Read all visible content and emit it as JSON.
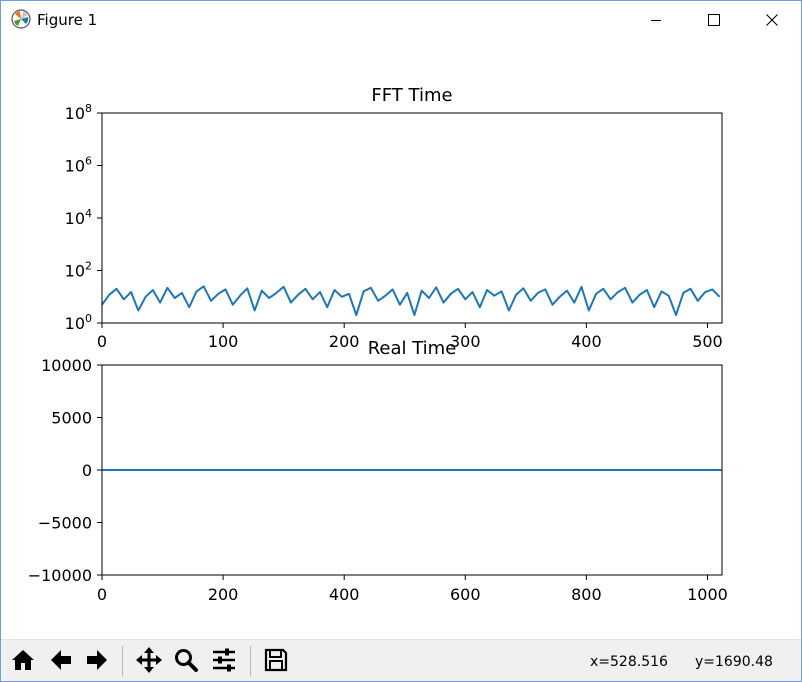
{
  "window": {
    "title": "Figure 1"
  },
  "titlebar_buttons": {
    "minimize": "minimize-icon",
    "maximize": "maximize-icon",
    "close": "close-icon"
  },
  "toolbar": {
    "buttons": [
      "home-icon",
      "back-arrow-icon",
      "forward-arrow-icon",
      "pan-icon",
      "zoom-icon",
      "configure-subplots-icon",
      "save-icon"
    ],
    "status_x": "x=528.516",
    "status_y": "y=1690.48"
  },
  "chart_data": [
    {
      "type": "line",
      "title": "FFT Time",
      "xlabel": "",
      "ylabel": "",
      "xlim": [
        0,
        512
      ],
      "ylim": [
        1,
        100000000
      ],
      "yscale": "log",
      "xticks": [
        "0",
        "100",
        "200",
        "300",
        "400",
        "500"
      ],
      "yticks": [
        {
          "base": "10",
          "exp": "0"
        },
        {
          "base": "10",
          "exp": "2"
        },
        {
          "base": "10",
          "exp": "4"
        },
        {
          "base": "10",
          "exp": "6"
        },
        {
          "base": "10",
          "exp": "8"
        }
      ],
      "series": [
        {
          "color": "#1f77b4",
          "x": [
            0,
            6,
            12,
            18,
            24,
            30,
            36,
            42,
            48,
            54,
            60,
            66,
            72,
            78,
            84,
            90,
            96,
            102,
            108,
            114,
            120,
            126,
            132,
            138,
            144,
            150,
            156,
            162,
            168,
            174,
            180,
            186,
            192,
            198,
            204,
            210,
            216,
            222,
            228,
            234,
            240,
            246,
            252,
            258,
            264,
            270,
            276,
            282,
            288,
            294,
            300,
            306,
            312,
            318,
            324,
            330,
            336,
            342,
            348,
            354,
            360,
            366,
            372,
            378,
            384,
            390,
            396,
            402,
            408,
            414,
            420,
            426,
            432,
            438,
            444,
            450,
            456,
            462,
            468,
            474,
            480,
            486,
            492,
            498,
            504,
            510
          ],
          "y": [
            5,
            12,
            20,
            8,
            15,
            3,
            10,
            18,
            6,
            22,
            9,
            14,
            4,
            16,
            25,
            7,
            13,
            19,
            5,
            11,
            21,
            3,
            17,
            9,
            14,
            24,
            6,
            12,
            20,
            8,
            15,
            4,
            18,
            10,
            13,
            2,
            16,
            22,
            7,
            11,
            19,
            5,
            14,
            2,
            17,
            9,
            23,
            6,
            13,
            20,
            8,
            15,
            4,
            18,
            11,
            16,
            3,
            12,
            21,
            7,
            14,
            19,
            5,
            10,
            17,
            6,
            24,
            3,
            13,
            20,
            8,
            15,
            22,
            6,
            12,
            18,
            4,
            16,
            11,
            2,
            14,
            20,
            7,
            15,
            19,
            10
          ]
        }
      ]
    },
    {
      "type": "line",
      "title": "Real Time",
      "xlabel": "",
      "ylabel": "",
      "xlim": [
        0,
        1024
      ],
      "ylim": [
        -10000,
        10000
      ],
      "xticks": [
        "0",
        "200",
        "400",
        "600",
        "800",
        "1000"
      ],
      "yticks": [
        "10000",
        "5000",
        "0",
        "−5000",
        "−10000"
      ],
      "series": [
        {
          "color": "#1f77b4",
          "x": [
            0,
            1024
          ],
          "y": [
            0,
            0
          ]
        }
      ]
    }
  ]
}
